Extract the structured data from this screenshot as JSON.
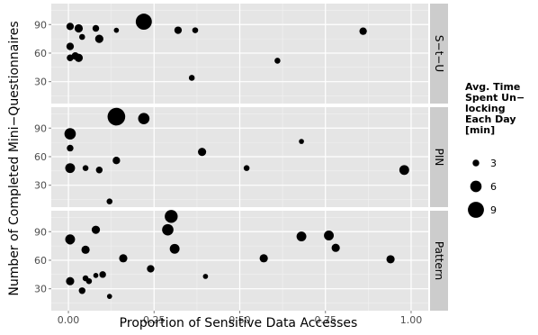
{
  "chart_data": {
    "type": "scatter",
    "xlabel": "Proportion of Sensitive Data Accesses",
    "ylabel": "Number of Completed Mini−Questionnaires",
    "xlim": [
      -0.05,
      1.05
    ],
    "ylim": [
      7,
      112
    ],
    "x_ticks": [
      0.0,
      0.25,
      0.5,
      0.75,
      1.0
    ],
    "x_tick_labels": [
      "0.00",
      "0.25",
      "0.50",
      "0.75",
      "1.00"
    ],
    "y_ticks": [
      30,
      60,
      90
    ],
    "y_tick_labels": [
      "30",
      "60",
      "90"
    ],
    "grid": true,
    "legend": {
      "position": "right",
      "title_lines": [
        "Avg. Time",
        "Spent Un−",
        "locking",
        "Each Day",
        "[min]"
      ],
      "entries": [
        {
          "size": 3,
          "label": "3"
        },
        {
          "size": 6,
          "label": "6"
        },
        {
          "size": 9,
          "label": "9"
        }
      ]
    },
    "panels": [
      {
        "name": "S−t−U",
        "points": [
          {
            "x": 0.005,
            "y": 88,
            "size": 3.5
          },
          {
            "x": 0.03,
            "y": 86,
            "size": 4
          },
          {
            "x": 0.04,
            "y": 77,
            "size": 2.5
          },
          {
            "x": 0.08,
            "y": 86,
            "size": 3
          },
          {
            "x": 0.09,
            "y": 75,
            "size": 4
          },
          {
            "x": 0.005,
            "y": 67,
            "size": 3.5
          },
          {
            "x": 0.02,
            "y": 57,
            "size": 3.5
          },
          {
            "x": 0.03,
            "y": 55,
            "size": 4
          },
          {
            "x": 0.005,
            "y": 55,
            "size": 3
          },
          {
            "x": 0.14,
            "y": 84,
            "size": 2
          },
          {
            "x": 0.22,
            "y": 93,
            "size": 9
          },
          {
            "x": 0.32,
            "y": 84,
            "size": 3.5
          },
          {
            "x": 0.37,
            "y": 84,
            "size": 2.5
          },
          {
            "x": 0.36,
            "y": 34,
            "size": 2.5
          },
          {
            "x": 0.61,
            "y": 52,
            "size": 2.5
          },
          {
            "x": 0.86,
            "y": 83,
            "size": 3.5
          }
        ]
      },
      {
        "name": "PIN",
        "points": [
          {
            "x": 0.14,
            "y": 102,
            "size": 10
          },
          {
            "x": 0.22,
            "y": 100,
            "size": 6
          },
          {
            "x": 0.005,
            "y": 84,
            "size": 6
          },
          {
            "x": 0.005,
            "y": 69,
            "size": 3
          },
          {
            "x": 0.005,
            "y": 48,
            "size": 5
          },
          {
            "x": 0.05,
            "y": 48,
            "size": 2.5
          },
          {
            "x": 0.09,
            "y": 46,
            "size": 3
          },
          {
            "x": 0.14,
            "y": 56,
            "size": 3.5
          },
          {
            "x": 0.12,
            "y": 13,
            "size": 2.5
          },
          {
            "x": 0.39,
            "y": 65,
            "size": 4
          },
          {
            "x": 0.52,
            "y": 48,
            "size": 2.5
          },
          {
            "x": 0.68,
            "y": 76,
            "size": 2
          },
          {
            "x": 0.98,
            "y": 46,
            "size": 5
          }
        ]
      },
      {
        "name": "Pattern",
        "points": [
          {
            "x": 0.3,
            "y": 106,
            "size": 7
          },
          {
            "x": 0.29,
            "y": 92,
            "size": 6
          },
          {
            "x": 0.31,
            "y": 72,
            "size": 5
          },
          {
            "x": 0.005,
            "y": 82,
            "size": 5
          },
          {
            "x": 0.005,
            "y": 80,
            "size": 3
          },
          {
            "x": 0.08,
            "y": 92,
            "size": 4
          },
          {
            "x": 0.05,
            "y": 71,
            "size": 4
          },
          {
            "x": 0.005,
            "y": 38,
            "size": 4
          },
          {
            "x": 0.04,
            "y": 28,
            "size": 3
          },
          {
            "x": 0.05,
            "y": 41,
            "size": 2.5
          },
          {
            "x": 0.06,
            "y": 38,
            "size": 2.5
          },
          {
            "x": 0.08,
            "y": 44,
            "size": 2
          },
          {
            "x": 0.1,
            "y": 45,
            "size": 3
          },
          {
            "x": 0.12,
            "y": 22,
            "size": 2
          },
          {
            "x": 0.16,
            "y": 62,
            "size": 4
          },
          {
            "x": 0.24,
            "y": 51,
            "size": 3.5
          },
          {
            "x": 0.4,
            "y": 43,
            "size": 2
          },
          {
            "x": 0.57,
            "y": 62,
            "size": 4
          },
          {
            "x": 0.68,
            "y": 85,
            "size": 5
          },
          {
            "x": 0.76,
            "y": 86,
            "size": 5
          },
          {
            "x": 0.78,
            "y": 73,
            "size": 4
          },
          {
            "x": 0.94,
            "y": 61,
            "size": 4
          }
        ]
      }
    ]
  },
  "colors": {
    "panel_bg": "#e5e5e5",
    "grid_major": "#ffffff",
    "grid_minor": "#f2f2f2",
    "strip_bg": "#cccccc",
    "point": "#000000",
    "text": "#000000",
    "tick_text": "#4d4d4d"
  }
}
